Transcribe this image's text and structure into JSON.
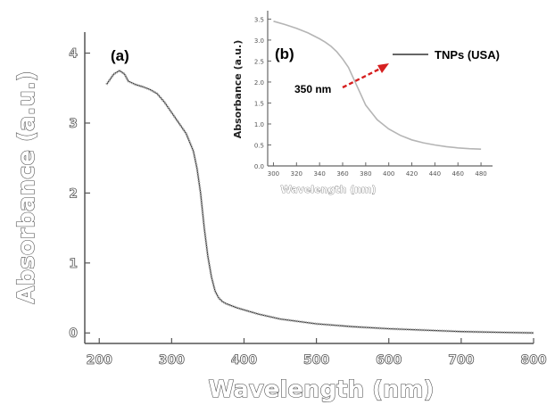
{
  "chart_data": [
    {
      "type": "line",
      "panel_label": "(a)",
      "xlabel": "Wavelength (nm)",
      "ylabel": "Absorbance (a.u.)",
      "xlim": [
        180,
        800
      ],
      "ylim": [
        -0.15,
        4.3
      ],
      "x_ticks": [
        200,
        300,
        400,
        500,
        600,
        700,
        800
      ],
      "x_tick_labels": [
        "200",
        "300",
        "400",
        "500",
        "600",
        "700",
        "800"
      ],
      "y_ticks": [
        0,
        1,
        2,
        3,
        4
      ],
      "y_tick_labels": [
        "0",
        "1",
        "2",
        "3",
        "4"
      ],
      "series": [
        {
          "x": [
            210,
            220,
            228,
            235,
            240,
            250,
            260,
            270,
            280,
            290,
            300,
            310,
            320,
            330,
            335,
            340,
            345,
            350,
            355,
            360,
            365,
            370,
            375,
            380,
            390,
            400,
            420,
            450,
            500,
            550,
            600,
            650,
            700,
            750,
            800
          ],
          "y": [
            3.55,
            3.7,
            3.75,
            3.7,
            3.6,
            3.55,
            3.52,
            3.48,
            3.42,
            3.3,
            3.15,
            3.0,
            2.85,
            2.6,
            2.35,
            2.0,
            1.5,
            1.1,
            0.8,
            0.6,
            0.5,
            0.45,
            0.42,
            0.4,
            0.36,
            0.33,
            0.27,
            0.2,
            0.13,
            0.09,
            0.06,
            0.04,
            0.02,
            0.01,
            0.0
          ]
        }
      ]
    },
    {
      "type": "line",
      "panel_label": "(b)",
      "xlabel": "Wavelength (nm)",
      "ylabel": "Absorbance (a.u.)",
      "xlim": [
        295,
        490
      ],
      "ylim": [
        0.0,
        3.7
      ],
      "y_ticks": [
        0.0,
        0.5,
        1.0,
        1.5,
        2.0,
        2.5,
        3.0,
        3.5
      ],
      "y_tick_labels": [
        "0.0",
        "0.5",
        "1.0",
        "1.5",
        "2.0",
        "2.5",
        "3.0",
        "3.5"
      ],
      "x_ticks": [
        300,
        320,
        340,
        360,
        380,
        400,
        420,
        440,
        460,
        480
      ],
      "x_tick_labels": [
        "300",
        "320",
        "340",
        "360",
        "380",
        "400",
        "420",
        "440",
        "460",
        "480"
      ],
      "legend": [
        {
          "name": "TNPs (USA)",
          "color": "#333333"
        }
      ],
      "annotation": {
        "text": "350 nm",
        "arrow_color": "#d62020",
        "x": 350
      },
      "series": [
        {
          "name": "TNPs (USA)",
          "x": [
            300,
            310,
            320,
            330,
            340,
            345,
            350,
            355,
            360,
            365,
            370,
            375,
            380,
            390,
            400,
            410,
            420,
            430,
            440,
            450,
            460,
            470,
            480
          ],
          "y": [
            3.45,
            3.37,
            3.28,
            3.17,
            3.03,
            2.95,
            2.85,
            2.72,
            2.55,
            2.35,
            2.05,
            1.75,
            1.45,
            1.1,
            0.88,
            0.73,
            0.62,
            0.55,
            0.5,
            0.46,
            0.43,
            0.41,
            0.4
          ]
        }
      ]
    }
  ]
}
